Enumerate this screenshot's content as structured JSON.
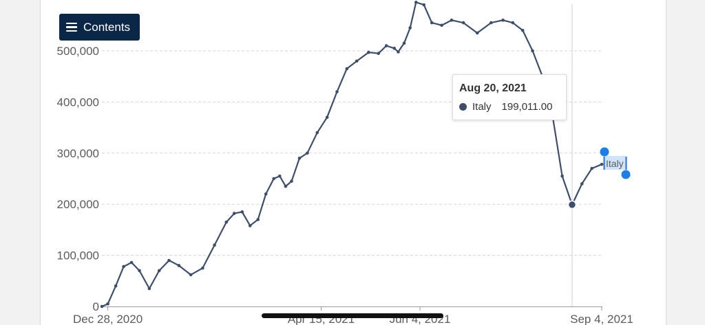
{
  "menu": {
    "label": "Contents",
    "icon": "hamburger-icon"
  },
  "chart_data": {
    "type": "line",
    "series": [
      {
        "name": "Italy",
        "color": "#3d4e6a",
        "points": [
          [
            "2020-12-25",
            0
          ],
          [
            "2020-12-28",
            5000
          ],
          [
            "2021-01-01",
            40000
          ],
          [
            "2021-01-05",
            78000
          ],
          [
            "2021-01-09",
            86000
          ],
          [
            "2021-01-13",
            70000
          ],
          [
            "2021-01-18",
            35000
          ],
          [
            "2021-01-23",
            70000
          ],
          [
            "2021-01-28",
            90000
          ],
          [
            "2021-02-02",
            80000
          ],
          [
            "2021-02-08",
            62000
          ],
          [
            "2021-02-14",
            75000
          ],
          [
            "2021-02-20",
            120000
          ],
          [
            "2021-02-26",
            165000
          ],
          [
            "2021-03-02",
            182000
          ],
          [
            "2021-03-06",
            185000
          ],
          [
            "2021-03-10",
            158000
          ],
          [
            "2021-03-14",
            170000
          ],
          [
            "2021-03-18",
            220000
          ],
          [
            "2021-03-22",
            250000
          ],
          [
            "2021-03-25",
            255000
          ],
          [
            "2021-03-28",
            235000
          ],
          [
            "2021-03-31",
            245000
          ],
          [
            "2021-04-04",
            290000
          ],
          [
            "2021-04-08",
            300000
          ],
          [
            "2021-04-13",
            340000
          ],
          [
            "2021-04-18",
            370000
          ],
          [
            "2021-04-23",
            420000
          ],
          [
            "2021-04-28",
            465000
          ],
          [
            "2021-05-03",
            480000
          ],
          [
            "2021-05-09",
            497000
          ],
          [
            "2021-05-14",
            495000
          ],
          [
            "2021-05-18",
            510000
          ],
          [
            "2021-05-22",
            505000
          ],
          [
            "2021-05-24",
            498000
          ],
          [
            "2021-05-27",
            515000
          ],
          [
            "2021-05-30",
            545000
          ],
          [
            "2021-06-02",
            595000
          ],
          [
            "2021-06-06",
            590000
          ],
          [
            "2021-06-10",
            555000
          ],
          [
            "2021-06-15",
            550000
          ],
          [
            "2021-06-20",
            560000
          ],
          [
            "2021-06-26",
            555000
          ],
          [
            "2021-07-03",
            535000
          ],
          [
            "2021-07-10",
            555000
          ],
          [
            "2021-07-16",
            560000
          ],
          [
            "2021-07-21",
            555000
          ],
          [
            "2021-07-26",
            540000
          ],
          [
            "2021-07-31",
            500000
          ],
          [
            "2021-08-05",
            450000
          ],
          [
            "2021-08-10",
            375000
          ],
          [
            "2021-08-15",
            255000
          ],
          [
            "2021-08-20",
            199011
          ],
          [
            "2021-08-25",
            240000
          ],
          [
            "2021-08-30",
            270000
          ],
          [
            "2021-09-04",
            278000
          ]
        ]
      }
    ],
    "x_ticks": [
      "Dec 28, 2020",
      "Apr 15, 2021",
      "Jun 4, 2021",
      "Sep 4, 2021"
    ],
    "y_ticks": [
      "0",
      "100,000",
      "200,000",
      "300,000",
      "400,000",
      "500,000"
    ],
    "ylim": [
      0,
      600000
    ],
    "grid": true,
    "end_label": "Italy",
    "tooltip": {
      "date": "Aug 20, 2021",
      "series": "Italy",
      "value": "199,011.00"
    }
  }
}
